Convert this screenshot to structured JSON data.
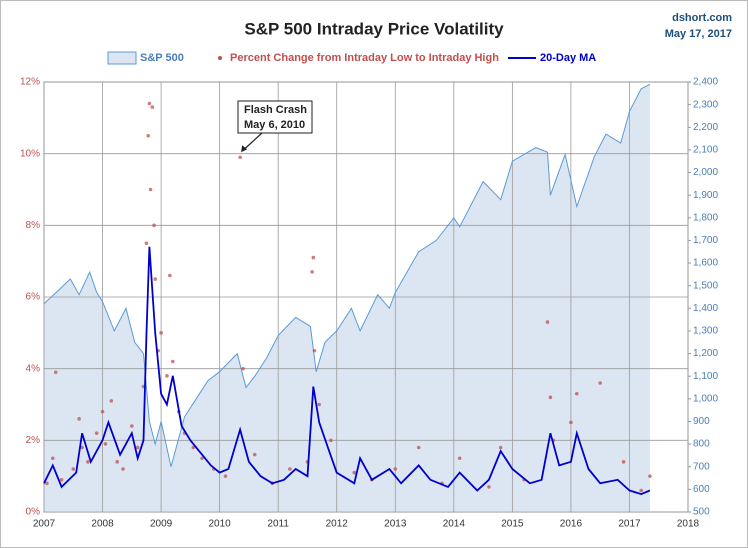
{
  "chart_data": {
    "type": "combo",
    "title": "S&P 500 Intraday Price Volatility",
    "source": "dshort.com",
    "date": "May 17, 2017",
    "annotation": [
      "Flash Crash",
      "May 6, 2010"
    ],
    "annotation_point": [
      2010.35,
      9.9
    ],
    "xlim": [
      2007,
      2018
    ],
    "xticks": [
      2007,
      2008,
      2009,
      2010,
      2011,
      2012,
      2013,
      2014,
      2015,
      2016,
      2017,
      2018
    ],
    "ylim": [
      0,
      12
    ],
    "yticks": [
      {
        "value": 0,
        "label": "0%"
      },
      {
        "value": 2,
        "label": "2%"
      },
      {
        "value": 4,
        "label": "4%"
      },
      {
        "value": 6,
        "label": "6%"
      },
      {
        "value": 8,
        "label": "8%"
      },
      {
        "value": 10,
        "label": "10%"
      },
      {
        "value": 12,
        "label": "12%"
      }
    ],
    "y2lim": [
      500,
      2400
    ],
    "y2ticks": [
      500,
      600,
      700,
      800,
      900,
      {
        "value": 1000,
        "label": "1,000"
      },
      {
        "value": 1100,
        "label": "1,100"
      },
      {
        "value": 1200,
        "label": "1,200"
      },
      {
        "value": 1300,
        "label": "1,300"
      },
      {
        "value": 1400,
        "label": "1,400"
      },
      {
        "value": 1500,
        "label": "1,500"
      },
      {
        "value": 1600,
        "label": "1,600"
      },
      {
        "value": 1700,
        "label": "1,700"
      },
      {
        "value": 1800,
        "label": "1,800"
      },
      {
        "value": 1900,
        "label": "1,900"
      },
      {
        "value": 2000,
        "label": "2,000"
      },
      {
        "value": 2100,
        "label": "2,100"
      },
      {
        "value": 2200,
        "label": "2,200"
      },
      {
        "value": 2300,
        "label": "2,300"
      },
      {
        "value": 2400,
        "label": "2,400"
      }
    ],
    "grid": true,
    "series": [
      {
        "name": "S&P 500",
        "kind": "area",
        "axis": "y2",
        "color": "#5b9bd5",
        "fill": "#dce6f2",
        "x": [
          2007.0,
          2007.25,
          2007.45,
          2007.6,
          2007.78,
          2007.9,
          2008.0,
          2008.2,
          2008.4,
          2008.55,
          2008.7,
          2008.8,
          2008.9,
          2009.0,
          2009.17,
          2009.4,
          2009.6,
          2009.8,
          2010.0,
          2010.3,
          2010.45,
          2010.6,
          2010.8,
          2011.0,
          2011.3,
          2011.55,
          2011.65,
          2011.8,
          2012.0,
          2012.25,
          2012.4,
          2012.7,
          2012.9,
          2013.0,
          2013.4,
          2013.7,
          2014.0,
          2014.1,
          2014.5,
          2014.8,
          2015.0,
          2015.4,
          2015.6,
          2015.65,
          2015.9,
          2016.1,
          2016.4,
          2016.6,
          2016.85,
          2017.0,
          2017.2,
          2017.35
        ],
        "values": [
          1420,
          1480,
          1530,
          1460,
          1560,
          1470,
          1430,
          1300,
          1400,
          1250,
          1200,
          900,
          800,
          900,
          700,
          920,
          1000,
          1080,
          1120,
          1200,
          1050,
          1100,
          1180,
          1280,
          1360,
          1320,
          1120,
          1250,
          1300,
          1400,
          1300,
          1460,
          1400,
          1470,
          1650,
          1700,
          1800,
          1760,
          1960,
          1880,
          2050,
          2110,
          2090,
          1900,
          2080,
          1850,
          2070,
          2170,
          2130,
          2270,
          2370,
          2390
        ]
      },
      {
        "name": "Percent Change from Intraday Low to Intraday High",
        "kind": "scatter",
        "axis": "y",
        "color": "#c0504d",
        "x": [
          2007.05,
          2007.15,
          2007.2,
          2007.3,
          2007.5,
          2007.6,
          2007.65,
          2007.75,
          2007.9,
          2008.0,
          2008.05,
          2008.15,
          2008.25,
          2008.35,
          2008.5,
          2008.6,
          2008.7,
          2008.75,
          2008.78,
          2008.8,
          2008.82,
          2008.85,
          2008.88,
          2008.9,
          2008.95,
          2009.0,
          2009.1,
          2009.15,
          2009.2,
          2009.3,
          2009.4,
          2009.55,
          2009.7,
          2009.9,
          2010.1,
          2010.35,
          2010.4,
          2010.6,
          2010.9,
          2011.2,
          2011.5,
          2011.58,
          2011.6,
          2011.62,
          2011.7,
          2011.9,
          2012.3,
          2012.6,
          2013.0,
          2013.4,
          2013.8,
          2014.1,
          2014.6,
          2014.8,
          2015.2,
          2015.6,
          2015.65,
          2015.7,
          2016.0,
          2016.1,
          2016.5,
          2016.9,
          2017.2,
          2017.35
        ],
        "values": [
          0.8,
          1.5,
          3.9,
          0.9,
          1.2,
          2.6,
          1.8,
          1.4,
          2.2,
          2.8,
          1.9,
          3.1,
          1.4,
          1.2,
          2.4,
          1.8,
          3.5,
          7.5,
          10.5,
          11.4,
          9.0,
          11.3,
          8.0,
          6.5,
          4.5,
          5.0,
          3.8,
          6.6,
          4.2,
          2.8,
          2.2,
          1.8,
          1.5,
          1.2,
          1.0,
          9.9,
          4.0,
          1.6,
          0.8,
          1.2,
          1.4,
          6.7,
          7.1,
          4.5,
          3.0,
          2.0,
          1.1,
          0.9,
          1.2,
          1.8,
          0.8,
          1.5,
          0.7,
          1.8,
          0.9,
          5.3,
          3.2,
          2.0,
          2.5,
          3.3,
          3.6,
          1.4,
          0.6,
          1.0
        ]
      },
      {
        "name": "20-Day MA",
        "kind": "line",
        "axis": "y",
        "color": "#0000cc",
        "x": [
          2007.0,
          2007.15,
          2007.3,
          2007.55,
          2007.65,
          2007.8,
          2008.0,
          2008.1,
          2008.3,
          2008.5,
          2008.6,
          2008.7,
          2008.75,
          2008.8,
          2008.9,
          2009.0,
          2009.1,
          2009.2,
          2009.35,
          2009.5,
          2009.7,
          2009.85,
          2010.0,
          2010.15,
          2010.35,
          2010.5,
          2010.7,
          2010.9,
          2011.1,
          2011.3,
          2011.5,
          2011.6,
          2011.7,
          2011.85,
          2012.0,
          2012.3,
          2012.4,
          2012.6,
          2012.9,
          2013.1,
          2013.4,
          2013.6,
          2013.9,
          2014.1,
          2014.4,
          2014.6,
          2014.8,
          2015.0,
          2015.3,
          2015.5,
          2015.65,
          2015.8,
          2016.0,
          2016.1,
          2016.3,
          2016.5,
          2016.8,
          2017.0,
          2017.2,
          2017.35
        ],
        "values": [
          0.8,
          1.3,
          0.7,
          1.1,
          2.2,
          1.4,
          2.0,
          2.5,
          1.6,
          2.2,
          1.5,
          2.0,
          5.0,
          7.4,
          5.0,
          3.3,
          3.0,
          3.8,
          2.4,
          2.0,
          1.6,
          1.3,
          1.1,
          1.2,
          2.3,
          1.4,
          1.0,
          0.8,
          0.9,
          1.2,
          1.0,
          3.5,
          2.5,
          1.8,
          1.1,
          0.8,
          1.5,
          0.9,
          1.2,
          0.8,
          1.3,
          0.9,
          0.7,
          1.1,
          0.6,
          0.9,
          1.7,
          1.2,
          0.8,
          0.9,
          2.2,
          1.3,
          1.4,
          2.2,
          1.2,
          0.8,
          0.9,
          0.6,
          0.5,
          0.6
        ]
      }
    ]
  }
}
